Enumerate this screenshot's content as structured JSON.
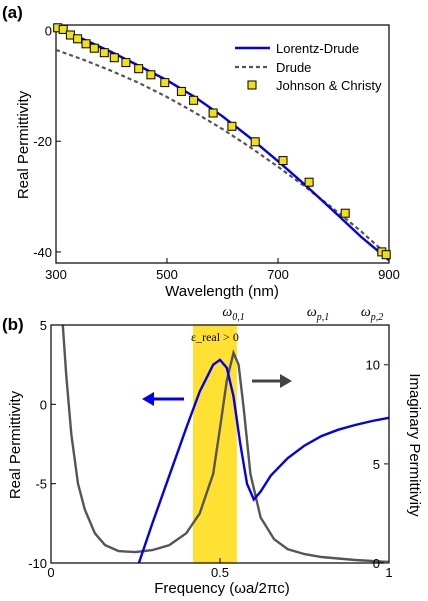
{
  "colors": {
    "lorentz_drude": "#0000ee",
    "drude": "#555555",
    "jc_fill": "#f2e012",
    "band": "#ffe033",
    "arrow_blue": "#0000ee",
    "arrow_gray": "#444444",
    "right_axis_ticks": "#2e7d32"
  },
  "chart_data": [
    {
      "panel_label": "(a)",
      "type": "line",
      "xlabel": "Wavelength (nm)",
      "ylabel": "Real Permittivity",
      "xlim": [
        300,
        900
      ],
      "ylim": [
        -42,
        1
      ],
      "xticks": [
        300,
        500,
        700,
        900
      ],
      "yticks": [
        0,
        -20,
        -40
      ],
      "grid": false,
      "legend_position": "top-right",
      "series": [
        {
          "name": "Lorentz-Drude",
          "style": "solid",
          "color": "#0000ee",
          "x": [
            300,
            350,
            400,
            450,
            500,
            550,
            600,
            650,
            700,
            750,
            800,
            850,
            900
          ],
          "y": [
            0.6,
            -1.6,
            -3.9,
            -6.4,
            -9.0,
            -12.0,
            -15.5,
            -19.4,
            -23.6,
            -28.0,
            -32.6,
            -37.3,
            -41.5
          ]
        },
        {
          "name": "Drude",
          "style": "dashed",
          "color": "#555555",
          "x": [
            300,
            350,
            400,
            450,
            500,
            550,
            600,
            650,
            700,
            750,
            800,
            850,
            900
          ],
          "y": [
            -3.5,
            -5.3,
            -7.3,
            -9.5,
            -12.0,
            -14.8,
            -17.8,
            -21.1,
            -24.6,
            -28.3,
            -32.2,
            -36.3,
            -40.8
          ]
        },
        {
          "name": "Johnson & Christy",
          "style": "markers",
          "marker": "square",
          "color": "#f2e012",
          "x": [
            303,
            313,
            326,
            339,
            354,
            369,
            387,
            405,
            426,
            449,
            471,
            496,
            526,
            548,
            583,
            617,
            659,
            709,
            756,
            821,
            887,
            895
          ],
          "y": [
            0.5,
            0.2,
            -0.8,
            -1.5,
            -2.4,
            -3.2,
            -4.0,
            -4.9,
            -5.8,
            -6.9,
            -8.0,
            -9.4,
            -11.0,
            -12.6,
            -14.9,
            -17.3,
            -20.1,
            -23.5,
            -27.4,
            -33.0,
            -40.0,
            -40.5
          ]
        }
      ]
    },
    {
      "panel_label": "(b)",
      "type": "line",
      "xlabel": "Frequency (ωa/2πc)",
      "ylabel": "Real Permittivity",
      "y2label": "Imaginary Permittivity",
      "xlim": [
        0,
        1
      ],
      "ylim": [
        -10,
        5
      ],
      "y2lim": [
        0,
        12
      ],
      "xticks": [
        0,
        0.5,
        1
      ],
      "yticks": [
        5,
        0,
        -5,
        -10
      ],
      "y2ticks": [
        10,
        5,
        0
      ],
      "grid": false,
      "shaded_band": {
        "x": [
          0.42,
          0.55
        ],
        "label": "ε_real > 0"
      },
      "top_labels": [
        {
          "text": "ω",
          "sub": "0,1",
          "x": 0.54
        },
        {
          "text": "ω",
          "sub": "p,1",
          "x": 0.79
        },
        {
          "text": "ω",
          "sub": "p,2",
          "x": 0.95
        }
      ],
      "series": [
        {
          "name": "Real Permittivity",
          "axis": "left",
          "color": "#0000ee",
          "x": [
            0.26,
            0.3,
            0.35,
            0.4,
            0.44,
            0.48,
            0.5,
            0.52,
            0.54,
            0.56,
            0.58,
            0.6,
            0.62,
            0.65,
            0.7,
            0.75,
            0.8,
            0.85,
            0.9,
            0.95,
            1.0
          ],
          "y": [
            -10,
            -7.5,
            -4.5,
            -1.5,
            0.8,
            2.5,
            2.8,
            2.3,
            0.5,
            -2.5,
            -5.0,
            -6.0,
            -5.5,
            -4.5,
            -3.4,
            -2.6,
            -2.0,
            -1.6,
            -1.3,
            -1.05,
            -0.85
          ]
        },
        {
          "name": "Imaginary Permittivity",
          "axis": "right",
          "color": "#555555",
          "x": [
            0.035,
            0.045,
            0.06,
            0.08,
            0.1,
            0.13,
            0.16,
            0.2,
            0.25,
            0.3,
            0.35,
            0.4,
            0.44,
            0.48,
            0.5,
            0.52,
            0.54,
            0.555,
            0.57,
            0.59,
            0.62,
            0.66,
            0.7,
            0.75,
            0.8,
            0.9,
            1.0
          ],
          "y": [
            12,
            9.5,
            6.5,
            4.0,
            2.7,
            1.5,
            0.9,
            0.6,
            0.55,
            0.65,
            0.9,
            1.5,
            2.5,
            4.5,
            6.8,
            9.2,
            10.6,
            10.0,
            7.8,
            4.5,
            2.3,
            1.2,
            0.7,
            0.45,
            0.3,
            0.15,
            0.05
          ]
        }
      ]
    }
  ]
}
